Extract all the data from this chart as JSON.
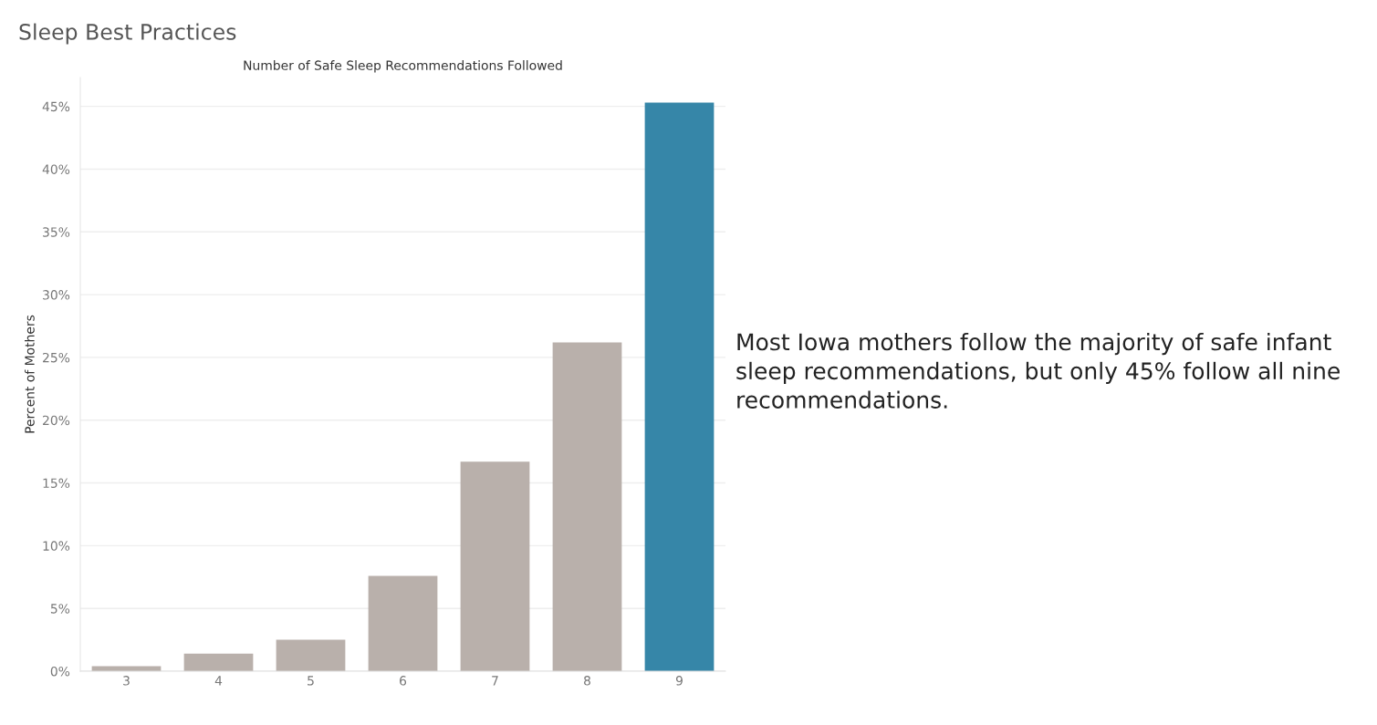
{
  "chart_data": {
    "type": "bar",
    "title": "Sleep Best Practices",
    "xlabel": "Number of Safe Sleep Recommendations Followed",
    "ylabel": "Percent of Mothers",
    "categories": [
      "3",
      "4",
      "5",
      "6",
      "7",
      "8",
      "9"
    ],
    "values": [
      0.4,
      1.4,
      2.5,
      7.6,
      16.7,
      26.2,
      45.3
    ],
    "colors": [
      "#b9b0ab",
      "#b9b0ab",
      "#b9b0ab",
      "#b9b0ab",
      "#b9b0ab",
      "#b9b0ab",
      "#3686a8"
    ],
    "ylim": [
      0,
      47.3
    ],
    "yticks": [
      {
        "value": 0,
        "label": "0%"
      },
      {
        "value": 5,
        "label": "5%"
      },
      {
        "value": 10,
        "label": "10%"
      },
      {
        "value": 15,
        "label": "15%"
      },
      {
        "value": 20,
        "label": "20%"
      },
      {
        "value": 25,
        "label": "25%"
      },
      {
        "value": 30,
        "label": "30%"
      },
      {
        "value": 35,
        "label": "35%"
      },
      {
        "value": 40,
        "label": "40%"
      },
      {
        "value": 45,
        "label": "45%"
      }
    ],
    "grid": "y",
    "annotations": [
      "Most Iowa mothers follow the majority of safe infant sleep recommendations, but only 45% follow all nine recommendations."
    ]
  }
}
